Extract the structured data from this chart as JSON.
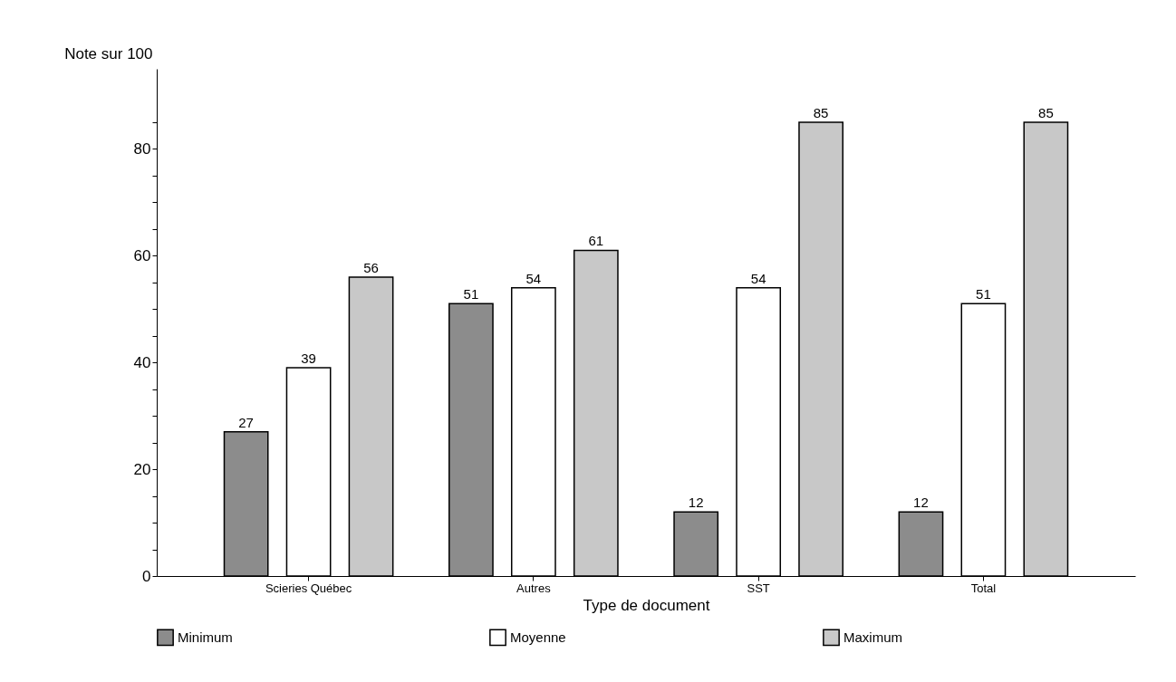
{
  "chart_data": {
    "type": "bar",
    "xlabel": "Type de document",
    "ylabel": "Note sur 100",
    "categories": [
      "Scieries Québec",
      "Autres",
      "SST",
      "Total"
    ],
    "series": [
      {
        "name": "Minimum",
        "color": "#8c8c8c",
        "values": [
          27,
          51,
          12,
          12
        ]
      },
      {
        "name": "Moyenne",
        "color": "#ffffff",
        "values": [
          39,
          54,
          54,
          51
        ]
      },
      {
        "name": "Maximum",
        "color": "#c8c8c8",
        "values": [
          56,
          61,
          85,
          85
        ]
      }
    ],
    "ylim": [
      0,
      95
    ],
    "yticks": [
      0,
      {
        "value": 5,
        "label": null
      },
      {
        "value": 10,
        "label": null
      },
      {
        "value": 15,
        "label": null
      },
      20,
      {
        "value": 25,
        "label": null
      },
      {
        "value": 30,
        "label": null
      },
      {
        "value": 35,
        "label": null
      },
      40,
      {
        "value": 45,
        "label": null
      },
      {
        "value": 50,
        "label": null
      },
      {
        "value": 55,
        "label": null
      },
      60,
      {
        "value": 65,
        "label": null
      },
      {
        "value": 70,
        "label": null
      },
      {
        "value": 75,
        "label": null
      },
      80,
      {
        "value": 85,
        "label": null
      }
    ],
    "data_labels": true,
    "grid": false,
    "legend": "bottom"
  }
}
